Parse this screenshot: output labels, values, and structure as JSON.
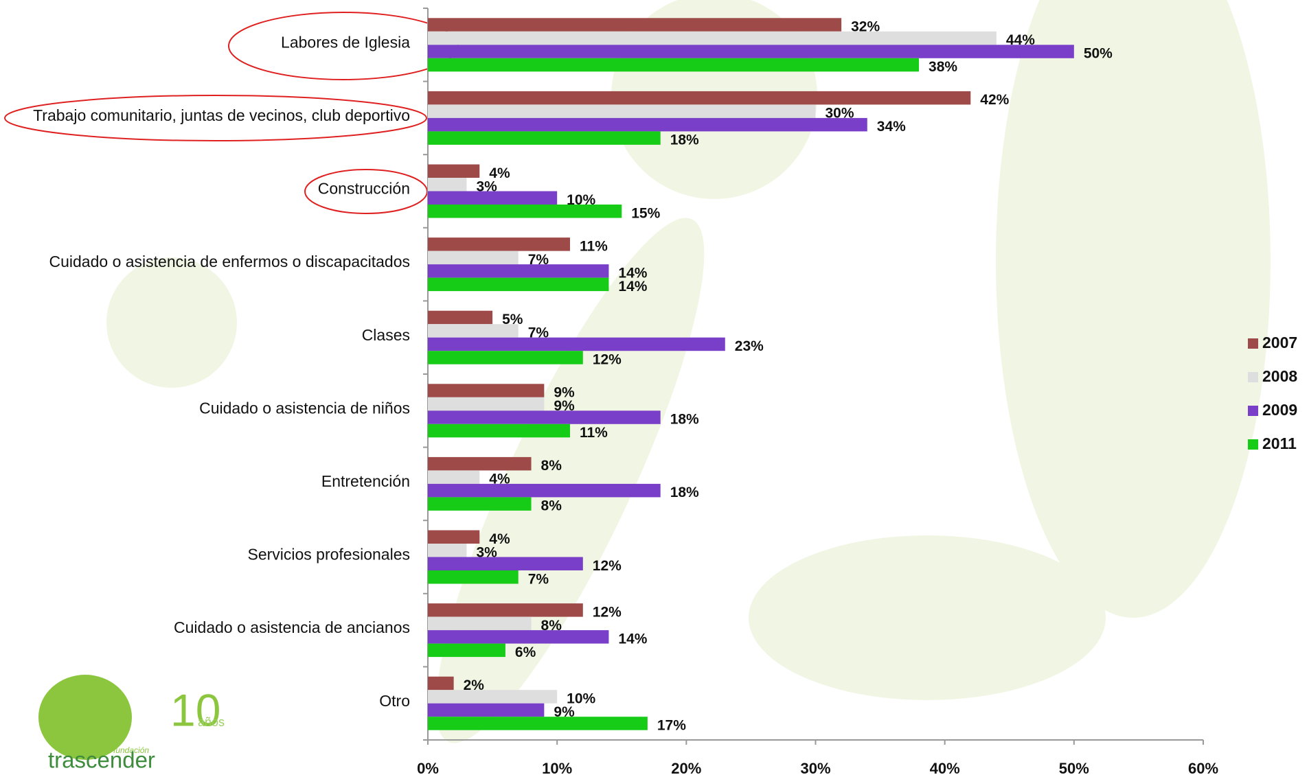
{
  "chart_data": {
    "type": "bar",
    "orientation": "horizontal",
    "categories": [
      "Labores de Iglesia",
      "Trabajo comunitario, juntas de vecinos, club deportivo",
      "Construcción",
      "Cuidado o asistencia de enfermos o discapacitados",
      "Clases",
      "Cuidado o asistencia de niños",
      "Entretención",
      "Servicios profesionales",
      "Cuidado o asistencia de ancianos",
      "Otro"
    ],
    "series": [
      {
        "name": "2007",
        "color": "#9e4a48",
        "values": [
          32,
          42,
          4,
          11,
          5,
          9,
          8,
          4,
          12,
          2
        ],
        "value_labels": [
          "32%",
          "42%",
          "4%",
          "11%",
          "5%",
          "9%",
          "8%",
          "4%",
          "12%",
          "2%"
        ]
      },
      {
        "name": "2008",
        "color": "#dedede",
        "values": [
          44,
          30,
          3,
          7,
          7,
          9,
          4,
          3,
          8,
          10
        ],
        "value_labels": [
          "44%",
          "30%",
          "3%",
          "7%",
          "7%",
          "9%",
          "4%",
          "3%",
          "8%",
          "10%"
        ]
      },
      {
        "name": "2009",
        "color": "#7a3fc9",
        "values": [
          50,
          34,
          10,
          14,
          23,
          18,
          18,
          12,
          14,
          9
        ],
        "value_labels": [
          "50%",
          "34%",
          "10%",
          "14%",
          "23%",
          "18%",
          "18%",
          "12%",
          "14%",
          "9%"
        ]
      },
      {
        "name": "2011",
        "color": "#17cc17",
        "values": [
          38,
          18,
          15,
          14,
          12,
          11,
          8,
          7,
          6,
          17
        ],
        "value_labels": [
          "38%",
          "18%",
          "15%",
          "14%",
          "12%",
          "11%",
          "8%",
          "7%",
          "6%",
          "17%"
        ]
      }
    ],
    "xlim": [
      0,
      60
    ],
    "xticks": [
      {
        "value": 0,
        "label": "0%"
      },
      {
        "value": 10,
        "label": "10%"
      },
      {
        "value": 20,
        "label": "20%"
      },
      {
        "value": 30,
        "label": "30%"
      },
      {
        "value": 40,
        "label": "40%"
      },
      {
        "value": 50,
        "label": "50%"
      },
      {
        "value": 60,
        "label": "60%"
      }
    ],
    "legend": "right"
  },
  "logo": {
    "small": "fundación",
    "name": "trascender",
    "number": "10",
    "suffix": "años"
  }
}
